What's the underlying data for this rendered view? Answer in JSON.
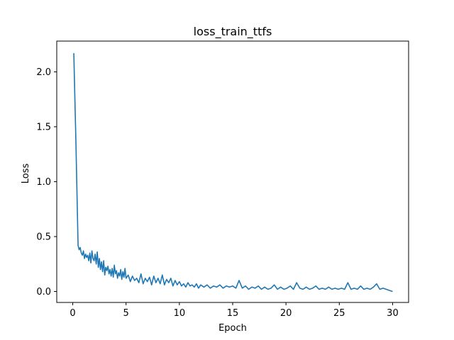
{
  "chart_data": {
    "type": "line",
    "title": "loss_train_ttfs",
    "xlabel": "Epoch",
    "ylabel": "Loss",
    "xlim": [
      -1.5,
      31.5
    ],
    "ylim": [
      -0.1,
      2.28
    ],
    "xticks": [
      0,
      5,
      10,
      15,
      20,
      25,
      30
    ],
    "yticks": [
      0.0,
      0.5,
      1.0,
      1.5,
      2.0
    ],
    "xtick_labels": [
      "0",
      "5",
      "10",
      "15",
      "20",
      "25",
      "30"
    ],
    "ytick_labels": [
      "0.0",
      "0.5",
      "1.0",
      "1.5",
      "2.0"
    ],
    "grid": false,
    "series": [
      {
        "color": "#1f77b4",
        "x": [
          0.1,
          0.3,
          0.5,
          0.6,
          0.7,
          0.8,
          0.9,
          1.0,
          1.1,
          1.2,
          1.3,
          1.4,
          1.5,
          1.6,
          1.7,
          1.8,
          1.9,
          2.0,
          2.1,
          2.2,
          2.3,
          2.4,
          2.5,
          2.6,
          2.7,
          2.8,
          2.9,
          3.0,
          3.1,
          3.2,
          3.3,
          3.4,
          3.5,
          3.6,
          3.7,
          3.8,
          3.9,
          4.0,
          4.1,
          4.2,
          4.3,
          4.4,
          4.5,
          4.6,
          4.7,
          4.8,
          4.9,
          5.0,
          5.2,
          5.4,
          5.6,
          5.8,
          6.0,
          6.2,
          6.4,
          6.6,
          6.8,
          7.0,
          7.2,
          7.4,
          7.6,
          7.8,
          8.0,
          8.2,
          8.4,
          8.6,
          8.8,
          9.0,
          9.2,
          9.4,
          9.6,
          9.8,
          10.0,
          10.2,
          10.4,
          10.6,
          10.8,
          11.0,
          11.2,
          11.4,
          11.6,
          11.8,
          12.0,
          12.3,
          12.6,
          12.9,
          13.2,
          13.5,
          13.8,
          14.1,
          14.4,
          14.7,
          15.0,
          15.3,
          15.6,
          15.9,
          16.2,
          16.5,
          16.8,
          17.1,
          17.4,
          17.7,
          18.0,
          18.3,
          18.6,
          18.9,
          19.2,
          19.5,
          19.8,
          20.1,
          20.4,
          20.7,
          21.0,
          21.3,
          21.6,
          21.9,
          22.2,
          22.5,
          22.8,
          23.1,
          23.4,
          23.7,
          24.0,
          24.3,
          24.6,
          24.9,
          25.2,
          25.5,
          25.8,
          26.1,
          26.4,
          26.7,
          27.0,
          27.3,
          27.6,
          27.9,
          28.2,
          28.5,
          28.8,
          29.1,
          29.4,
          29.7,
          30.0
        ],
        "y": [
          2.17,
          1.35,
          0.42,
          0.38,
          0.4,
          0.35,
          0.33,
          0.37,
          0.3,
          0.34,
          0.31,
          0.33,
          0.28,
          0.35,
          0.26,
          0.37,
          0.3,
          0.28,
          0.34,
          0.25,
          0.36,
          0.22,
          0.3,
          0.2,
          0.27,
          0.18,
          0.28,
          0.15,
          0.22,
          0.19,
          0.23,
          0.16,
          0.2,
          0.14,
          0.21,
          0.13,
          0.24,
          0.16,
          0.19,
          0.12,
          0.17,
          0.14,
          0.2,
          0.11,
          0.18,
          0.13,
          0.21,
          0.12,
          0.15,
          0.09,
          0.14,
          0.1,
          0.12,
          0.08,
          0.16,
          0.07,
          0.12,
          0.09,
          0.13,
          0.06,
          0.14,
          0.08,
          0.12,
          0.07,
          0.15,
          0.06,
          0.11,
          0.08,
          0.12,
          0.05,
          0.1,
          0.06,
          0.09,
          0.05,
          0.07,
          0.04,
          0.08,
          0.05,
          0.06,
          0.04,
          0.07,
          0.03,
          0.06,
          0.04,
          0.06,
          0.03,
          0.05,
          0.04,
          0.06,
          0.03,
          0.05,
          0.04,
          0.05,
          0.03,
          0.1,
          0.03,
          0.05,
          0.02,
          0.04,
          0.03,
          0.05,
          0.02,
          0.04,
          0.02,
          0.03,
          0.06,
          0.02,
          0.04,
          0.02,
          0.03,
          0.05,
          0.02,
          0.08,
          0.03,
          0.02,
          0.04,
          0.02,
          0.03,
          0.05,
          0.02,
          0.03,
          0.02,
          0.04,
          0.02,
          0.03,
          0.02,
          0.03,
          0.02,
          0.08,
          0.02,
          0.03,
          0.02,
          0.05,
          0.02,
          0.03,
          0.02,
          0.04,
          0.07,
          0.02,
          0.03,
          0.02,
          0.01,
          0.0
        ]
      }
    ]
  }
}
